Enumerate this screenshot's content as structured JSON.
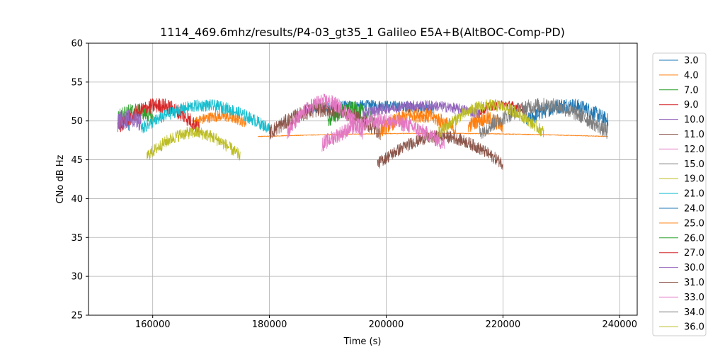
{
  "chart_data": {
    "type": "line",
    "title": "1114_469.6mhz/results/P4-03_gt35_1 Galileo E5A+B(AltBOC-Comp-PD)",
    "xlabel": "Time (s)",
    "ylabel": "CNo dB Hz",
    "xlim": [
      149000,
      243000
    ],
    "ylim": [
      25,
      60
    ],
    "xticks": [
      160000,
      180000,
      200000,
      220000,
      240000
    ],
    "xtick_labels": [
      "160000",
      "180000",
      "200000",
      "220000",
      "240000"
    ],
    "yticks": [
      25,
      30,
      35,
      40,
      45,
      50,
      55,
      60
    ],
    "ytick_labels": [
      "25",
      "30",
      "35",
      "40",
      "45",
      "50",
      "55",
      "60"
    ],
    "grid": true,
    "legend_position": "right-outside",
    "series": [
      {
        "name": "3.0",
        "color": "#1f77b4",
        "segments": [
          {
            "t0": 154000,
            "t1": 156000,
            "mean": 49.5,
            "peak": 0.5,
            "noise": 1.0
          },
          {
            "t0": 186000,
            "t1": 208000,
            "mean": 51.5,
            "peak": 0.5,
            "noise": 0.7
          },
          {
            "t0": 224000,
            "t1": 238000,
            "mean": 50.0,
            "peak": 2.0,
            "noise": 1.0
          }
        ]
      },
      {
        "name": "4.0",
        "color": "#ff7f0e",
        "segments": [
          {
            "t0": 167000,
            "t1": 176000,
            "mean": 49.8,
            "peak": 0.8,
            "noise": 0.7
          },
          {
            "t0": 178000,
            "t1": 238000,
            "mean": 48.0,
            "peak": 0.4,
            "noise": 0.05
          },
          {
            "t0": 199000,
            "t1": 212000,
            "mean": 48.8,
            "peak": 2.0,
            "noise": 1.0
          },
          {
            "t0": 214000,
            "t1": 220000,
            "mean": 49.3,
            "peak": 1.0,
            "noise": 1.0
          }
        ]
      },
      {
        "name": "7.0",
        "color": "#2ca02c",
        "segments": [
          {
            "t0": 154000,
            "t1": 160000,
            "mean": 50.5,
            "peak": 0.8,
            "noise": 1.0
          },
          {
            "t0": 190000,
            "t1": 198000,
            "mean": 50.0,
            "peak": 1.5,
            "noise": 1.0
          }
        ]
      },
      {
        "name": "9.0",
        "color": "#d62728",
        "segments": [
          {
            "t0": 154000,
            "t1": 168000,
            "mean": 49.0,
            "peak": 3.0,
            "noise": 1.0
          },
          {
            "t0": 216000,
            "t1": 224000,
            "mean": 51.3,
            "peak": 0.8,
            "noise": 0.6
          }
        ]
      },
      {
        "name": "10.0",
        "color": "#9467bd",
        "segments": [
          {
            "t0": 154000,
            "t1": 158000,
            "mean": 49.8,
            "peak": 0.5,
            "noise": 1.2
          },
          {
            "t0": 196000,
            "t1": 216000,
            "mean": 51.0,
            "peak": 1.0,
            "noise": 0.7
          }
        ]
      },
      {
        "name": "11.0",
        "color": "#8c564b",
        "segments": [
          {
            "t0": 180000,
            "t1": 199000,
            "mean": 48.5,
            "peak": 3.0,
            "noise": 1.0
          },
          {
            "t0": 198500,
            "t1": 220000,
            "mean": 44.5,
            "peak": 3.5,
            "noise": 0.8
          }
        ]
      },
      {
        "name": "12.0",
        "color": "#e377c2",
        "segments": [
          {
            "t0": 183000,
            "t1": 196000,
            "mean": 48.5,
            "peak": 4.0,
            "noise": 1.0
          },
          {
            "t0": 189000,
            "t1": 210000,
            "mean": 47.0,
            "peak": 3.0,
            "noise": 1.0
          }
        ]
      },
      {
        "name": "15.0",
        "color": "#7f7f7f",
        "segments": [
          {
            "t0": 216000,
            "t1": 238000,
            "mean": 48.5,
            "peak": 3.5,
            "noise": 1.0
          }
        ]
      },
      {
        "name": "19.0",
        "color": "#bcbd22",
        "segments": [
          {
            "t0": 159000,
            "t1": 175000,
            "mean": 45.5,
            "peak": 3.0,
            "noise": 0.8
          },
          {
            "t0": 209000,
            "t1": 227000,
            "mean": 48.5,
            "peak": 3.5,
            "noise": 0.8
          }
        ]
      },
      {
        "name": "21.0",
        "color": "#17becf",
        "segments": [
          {
            "t0": 158000,
            "t1": 180000,
            "mean": 49.0,
            "peak": 3.0,
            "noise": 0.8
          }
        ]
      },
      {
        "name": "24.0",
        "color": "#1f77b4",
        "segments": []
      },
      {
        "name": "25.0",
        "color": "#ff7f0e",
        "segments": []
      },
      {
        "name": "26.0",
        "color": "#2ca02c",
        "segments": []
      },
      {
        "name": "27.0",
        "color": "#d62728",
        "segments": []
      },
      {
        "name": "30.0",
        "color": "#9467bd",
        "segments": []
      },
      {
        "name": "31.0",
        "color": "#8c564b",
        "segments": []
      },
      {
        "name": "33.0",
        "color": "#e377c2",
        "segments": []
      },
      {
        "name": "34.0",
        "color": "#7f7f7f",
        "segments": []
      },
      {
        "name": "36.0",
        "color": "#bcbd22",
        "segments": []
      }
    ]
  }
}
